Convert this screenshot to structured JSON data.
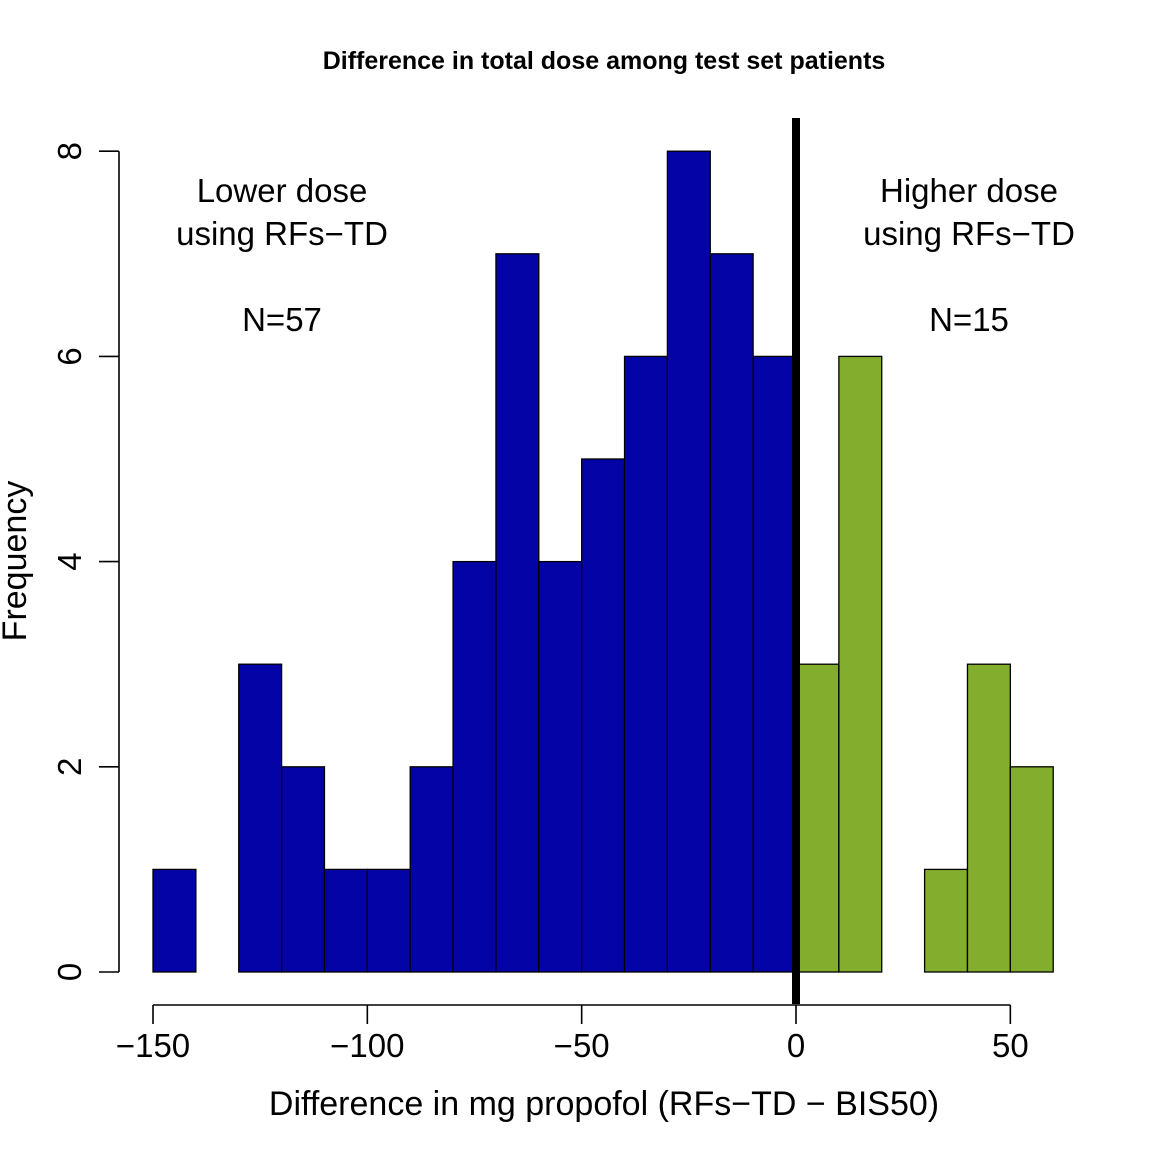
{
  "chart_data": {
    "type": "bar",
    "title": "Difference in total dose among test set patients",
    "xlabel": "Difference in mg propofol (RFs−TD − BIS50)",
    "ylabel": "Frequency",
    "xlim": [
      -150,
      60
    ],
    "ylim": [
      0,
      8
    ],
    "x_ticks": [
      -150,
      -100,
      -50,
      0,
      50
    ],
    "x_tick_labels": [
      "−150",
      "−100",
      "−50",
      "0",
      "50"
    ],
    "y_ticks": [
      0,
      2,
      4,
      6,
      8
    ],
    "y_tick_labels": [
      "0",
      "2",
      "4",
      "6",
      "8"
    ],
    "bin_width": 10,
    "bins": [
      {
        "start": -150,
        "end": -140,
        "count": 1
      },
      {
        "start": -140,
        "end": -130,
        "count": 0
      },
      {
        "start": -130,
        "end": -120,
        "count": 3
      },
      {
        "start": -120,
        "end": -110,
        "count": 2
      },
      {
        "start": -110,
        "end": -100,
        "count": 1
      },
      {
        "start": -100,
        "end": -90,
        "count": 1
      },
      {
        "start": -90,
        "end": -80,
        "count": 2
      },
      {
        "start": -80,
        "end": -70,
        "count": 4
      },
      {
        "start": -70,
        "end": -60,
        "count": 7
      },
      {
        "start": -60,
        "end": -50,
        "count": 4
      },
      {
        "start": -50,
        "end": -40,
        "count": 5
      },
      {
        "start": -40,
        "end": -30,
        "count": 6
      },
      {
        "start": -30,
        "end": -20,
        "count": 8
      },
      {
        "start": -20,
        "end": -10,
        "count": 7
      },
      {
        "start": -10,
        "end": 0,
        "count": 6
      },
      {
        "start": 0,
        "end": 10,
        "count": 3
      },
      {
        "start": 10,
        "end": 20,
        "count": 6
      },
      {
        "start": 20,
        "end": 30,
        "count": 0
      },
      {
        "start": 30,
        "end": 40,
        "count": 1
      },
      {
        "start": 40,
        "end": 50,
        "count": 3
      },
      {
        "start": 50,
        "end": 60,
        "count": 2
      }
    ],
    "colors": {
      "negative": "#0404A6",
      "positive": "#83AD2D",
      "reference_line": "#000000"
    },
    "reference_line_x": 0,
    "annotations": {
      "left": {
        "line1": "Lower dose",
        "line2": "using RFs−TD",
        "n": "N=57"
      },
      "right": {
        "line1": "Higher dose",
        "line2": "using RFs−TD",
        "n": "N=15"
      }
    }
  }
}
